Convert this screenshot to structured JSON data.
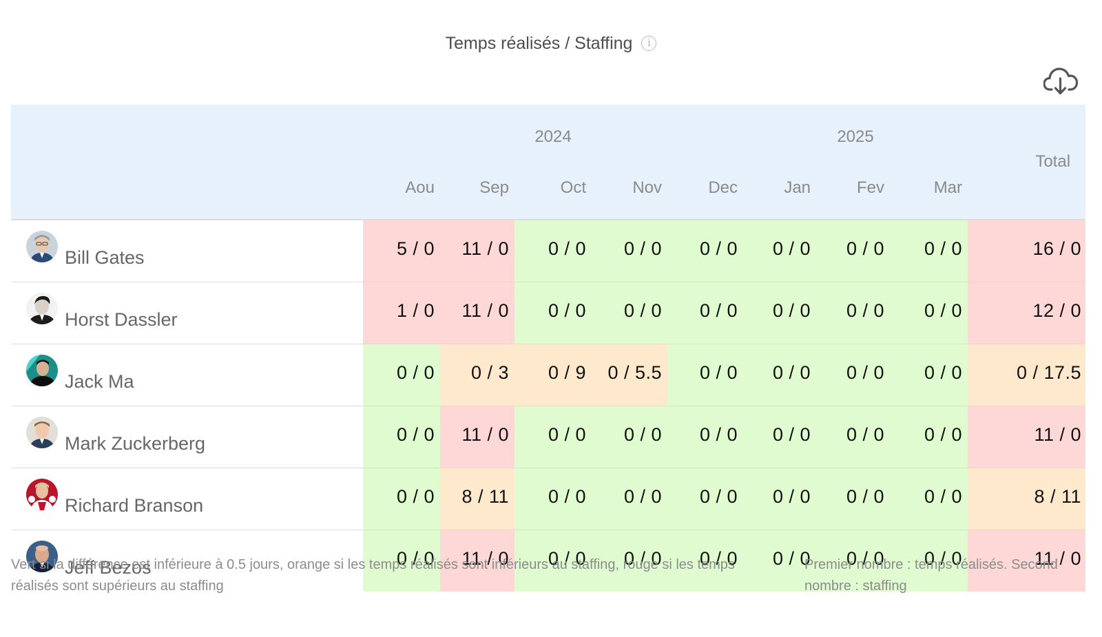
{
  "header": {
    "title": "Temps réalisés / Staffing",
    "info_icon": "info-icon",
    "download_icon": "cloud-download-icon"
  },
  "table": {
    "years": [
      {
        "label": "2024",
        "span": 5
      },
      {
        "label": "2025",
        "span": 3
      }
    ],
    "months": [
      "Aou",
      "Sep",
      "Oct",
      "Nov",
      "Dec",
      "Jan",
      "Fev",
      "Mar"
    ],
    "total_label": "Total",
    "rows": [
      {
        "name": "Bill Gates",
        "cells": [
          {
            "v": "5 / 0",
            "c": "red"
          },
          {
            "v": "11 / 0",
            "c": "red"
          },
          {
            "v": "0 / 0",
            "c": "green"
          },
          {
            "v": "0 / 0",
            "c": "green"
          },
          {
            "v": "0 / 0",
            "c": "green"
          },
          {
            "v": "0 / 0",
            "c": "green"
          },
          {
            "v": "0 / 0",
            "c": "green"
          },
          {
            "v": "0 / 0",
            "c": "green"
          }
        ],
        "total": {
          "v": "16 / 0",
          "c": "red"
        }
      },
      {
        "name": "Horst Dassler",
        "cells": [
          {
            "v": "1 / 0",
            "c": "red"
          },
          {
            "v": "11 / 0",
            "c": "red"
          },
          {
            "v": "0 / 0",
            "c": "green"
          },
          {
            "v": "0 / 0",
            "c": "green"
          },
          {
            "v": "0 / 0",
            "c": "green"
          },
          {
            "v": "0 / 0",
            "c": "green"
          },
          {
            "v": "0 / 0",
            "c": "green"
          },
          {
            "v": "0 / 0",
            "c": "green"
          }
        ],
        "total": {
          "v": "12 / 0",
          "c": "red"
        }
      },
      {
        "name": "Jack Ma",
        "cells": [
          {
            "v": "0 / 0",
            "c": "green"
          },
          {
            "v": "0 / 3",
            "c": "orange"
          },
          {
            "v": "0 / 9",
            "c": "orange"
          },
          {
            "v": "0 / 5.5",
            "c": "orange"
          },
          {
            "v": "0 / 0",
            "c": "green"
          },
          {
            "v": "0 / 0",
            "c": "green"
          },
          {
            "v": "0 / 0",
            "c": "green"
          },
          {
            "v": "0 / 0",
            "c": "green"
          }
        ],
        "total": {
          "v": "0 / 17.5",
          "c": "orange"
        }
      },
      {
        "name": "Mark Zuckerberg",
        "cells": [
          {
            "v": "0 / 0",
            "c": "green"
          },
          {
            "v": "11 / 0",
            "c": "red"
          },
          {
            "v": "0 / 0",
            "c": "green"
          },
          {
            "v": "0 / 0",
            "c": "green"
          },
          {
            "v": "0 / 0",
            "c": "green"
          },
          {
            "v": "0 / 0",
            "c": "green"
          },
          {
            "v": "0 / 0",
            "c": "green"
          },
          {
            "v": "0 / 0",
            "c": "green"
          }
        ],
        "total": {
          "v": "11 / 0",
          "c": "red"
        }
      },
      {
        "name": "Richard Branson",
        "cells": [
          {
            "v": "0 / 0",
            "c": "green"
          },
          {
            "v": "8 / 11",
            "c": "orange"
          },
          {
            "v": "0 / 0",
            "c": "green"
          },
          {
            "v": "0 / 0",
            "c": "green"
          },
          {
            "v": "0 / 0",
            "c": "green"
          },
          {
            "v": "0 / 0",
            "c": "green"
          },
          {
            "v": "0 / 0",
            "c": "green"
          },
          {
            "v": "0 / 0",
            "c": "green"
          }
        ],
        "total": {
          "v": "8 / 11",
          "c": "orange"
        }
      },
      {
        "name": "Jeff Bezos",
        "cells": [
          {
            "v": "0 / 0",
            "c": "green"
          },
          {
            "v": "11 / 0",
            "c": "red"
          },
          {
            "v": "0 / 0",
            "c": "green"
          },
          {
            "v": "0 / 0",
            "c": "green"
          },
          {
            "v": "0 / 0",
            "c": "green"
          },
          {
            "v": "0 / 0",
            "c": "green"
          },
          {
            "v": "0 / 0",
            "c": "green"
          },
          {
            "v": "0 / 0",
            "c": "green"
          }
        ],
        "total": {
          "v": "11 / 0",
          "c": "red"
        }
      }
    ]
  },
  "colors": {
    "green": "#e1fbd0",
    "orange": "#fee9cc",
    "red": "#fed8d6",
    "header_bg": "#e6f1fb"
  },
  "legend": {
    "left": "Vert si la différence est inférieure à 0.5 jours, orange si les temps réalisés sont inférieurs au staffing, rouge si les temps réalisés sont supérieurs au staffing",
    "right": "Premier nombre : temps réalisés. Second nombre : staffing"
  }
}
